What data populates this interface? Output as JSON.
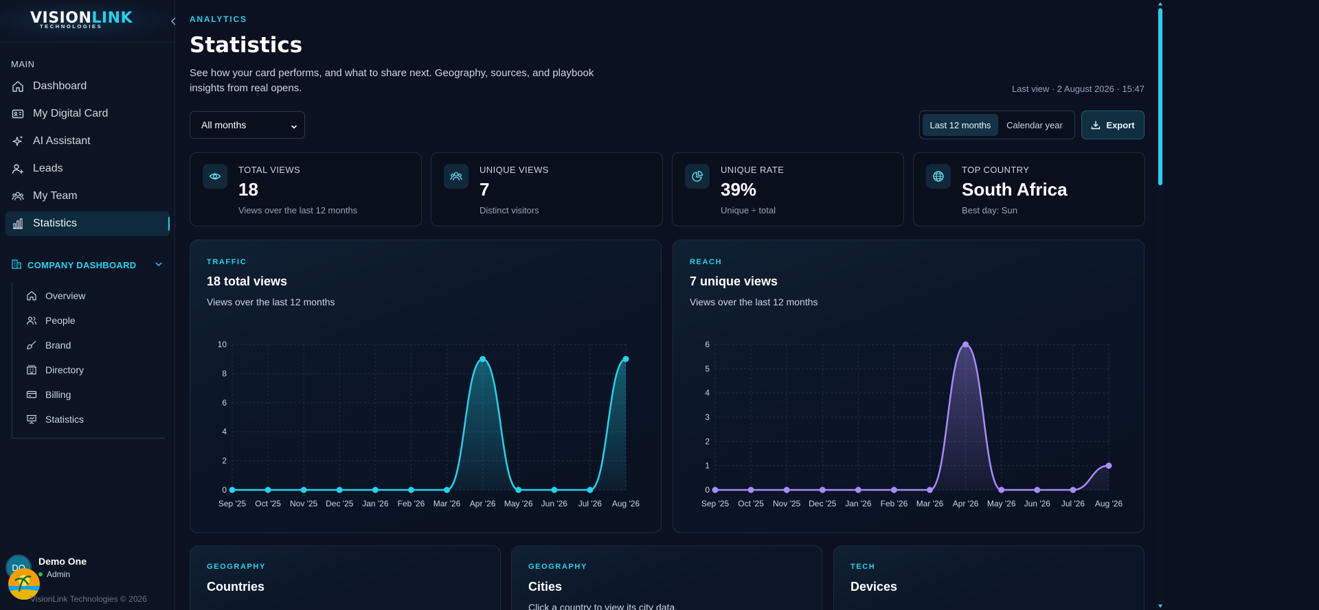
{
  "brand": {
    "name_a": "VISION",
    "name_b": "LINK",
    "tagline": "TECHNOLOGIES"
  },
  "sidebar": {
    "section_main": "MAIN",
    "items": [
      {
        "label": "Dashboard",
        "icon": "home-icon"
      },
      {
        "label": "My Digital Card",
        "icon": "id-card-icon"
      },
      {
        "label": "AI Assistant",
        "icon": "sparkles-icon"
      },
      {
        "label": "Leads",
        "icon": "user-plus-icon"
      },
      {
        "label": "My Team",
        "icon": "users-icon"
      },
      {
        "label": "Statistics",
        "icon": "bar-chart-icon",
        "active": true
      }
    ],
    "company": {
      "label": "COMPANY DASHBOARD",
      "items": [
        {
          "label": "Overview",
          "icon": "home-icon"
        },
        {
          "label": "People",
          "icon": "users-icon"
        },
        {
          "label": "Brand",
          "icon": "brush-icon"
        },
        {
          "label": "Directory",
          "icon": "building-icon"
        },
        {
          "label": "Billing",
          "icon": "credit-card-icon"
        },
        {
          "label": "Statistics",
          "icon": "presentation-icon"
        }
      ]
    },
    "user": {
      "initials": "DO",
      "name": "Demo One",
      "role": "Admin"
    },
    "copyright": "VisionLink Technologies © 2026"
  },
  "header": {
    "eyebrow": "ANALYTICS",
    "title": "Statistics",
    "description": "See how your card performs, and what to share next. Geography, sources, and playbook insights from real opens.",
    "last_view": "Last view · 2 August 2026 · 15:47"
  },
  "controls": {
    "month_filter": "All months",
    "range_options": [
      "Last 12 months",
      "Calendar year"
    ],
    "range_selected": "Last 12 months",
    "export_label": "Export"
  },
  "stats": [
    {
      "label": "TOTAL VIEWS",
      "value": "18",
      "sub": "Views over the last 12 months",
      "icon": "eye-icon"
    },
    {
      "label": "UNIQUE VIEWS",
      "value": "7",
      "sub": "Distinct visitors",
      "icon": "users-icon"
    },
    {
      "label": "UNIQUE RATE",
      "value": "39%",
      "sub": "Unique ÷ total",
      "icon": "pie-chart-icon"
    },
    {
      "label": "TOP COUNTRY",
      "value": "South Africa",
      "sub": "Best day: Sun",
      "icon": "globe-icon"
    }
  ],
  "charts": {
    "traffic": {
      "eyebrow": "TRAFFIC",
      "title": "18 total views",
      "subtitle": "Views over the last 12 months"
    },
    "reach": {
      "eyebrow": "REACH",
      "title": "7 unique views",
      "subtitle": "Views over the last 12 months"
    }
  },
  "bottom_cards": [
    {
      "eyebrow": "GEOGRAPHY",
      "title": "Countries",
      "sub": ""
    },
    {
      "eyebrow": "GEOGRAPHY",
      "title": "Cities",
      "sub": "Click a country to view its city data."
    },
    {
      "eyebrow": "TECH",
      "title": "Devices",
      "sub": ""
    }
  ],
  "colors": {
    "accent": "#22d3ee",
    "accent_purple": "#a78bfa",
    "background": "#0b1120"
  },
  "chart_data": [
    {
      "type": "area",
      "title": "18 total views",
      "categories": [
        "Sep '25",
        "Oct '25",
        "Nov '25",
        "Dec '25",
        "Jan '26",
        "Feb '26",
        "Mar '26",
        "Apr '26",
        "May '26",
        "Jun '26",
        "Jul '26",
        "Aug '26"
      ],
      "series": [
        {
          "values": [
            0,
            0,
            0,
            0,
            0,
            0,
            0,
            9,
            0,
            0,
            0,
            9
          ]
        }
      ],
      "y_ticks": [
        0,
        2,
        4,
        6,
        8,
        10
      ],
      "ylim": [
        0,
        10
      ],
      "grid": true,
      "color": "#22d3ee"
    },
    {
      "type": "area",
      "title": "7 unique views",
      "categories": [
        "Sep '25",
        "Oct '25",
        "Nov '25",
        "Dec '25",
        "Jan '26",
        "Feb '26",
        "Mar '26",
        "Apr '26",
        "May '26",
        "Jun '26",
        "Jul '26",
        "Aug '26"
      ],
      "series": [
        {
          "values": [
            0,
            0,
            0,
            0,
            0,
            0,
            0,
            6,
            0,
            0,
            0,
            1
          ]
        }
      ],
      "y_ticks": [
        0,
        1,
        2,
        3,
        4,
        5,
        6
      ],
      "ylim": [
        0,
        6
      ],
      "grid": true,
      "color": "#a78bfa"
    }
  ]
}
